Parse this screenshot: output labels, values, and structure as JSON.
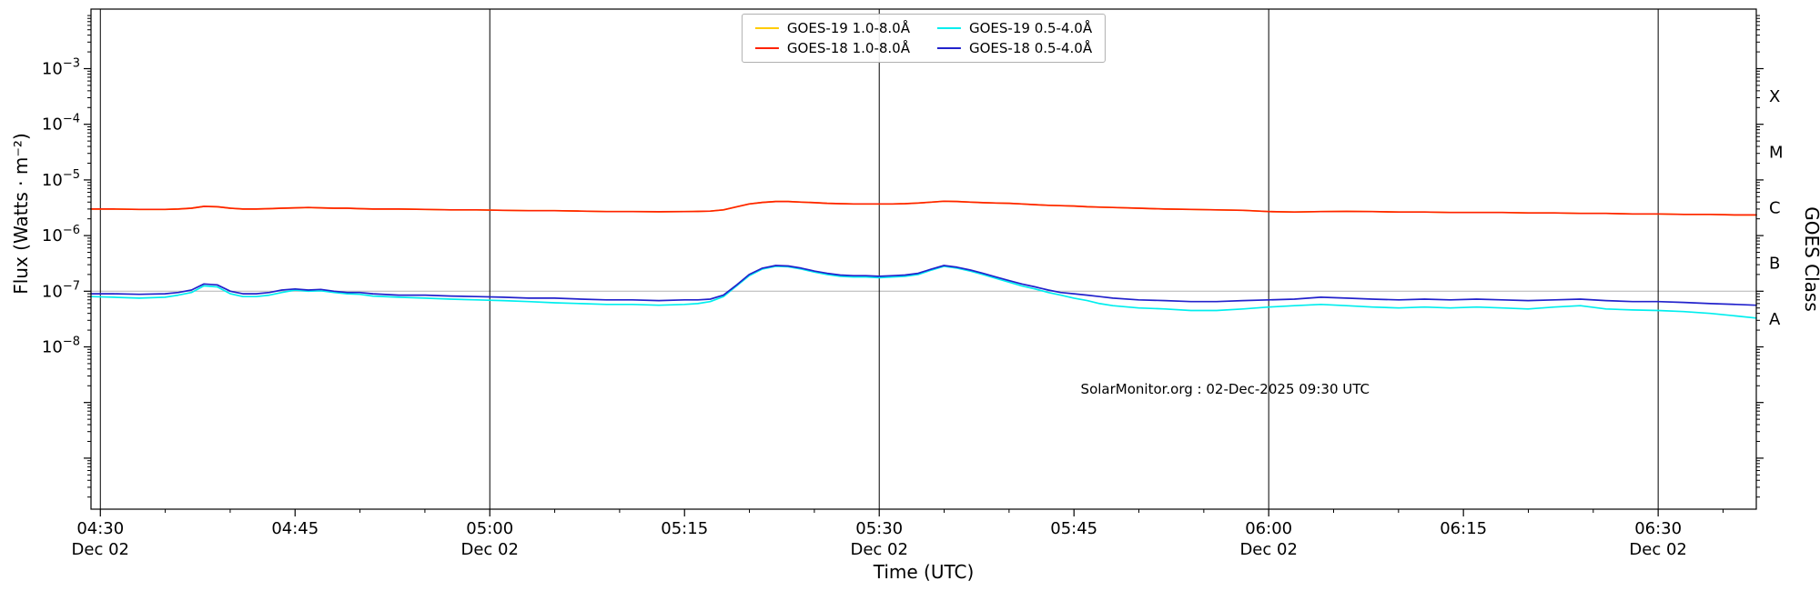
{
  "chart_data": {
    "type": "line",
    "title": "",
    "xlabel": "Time (UTC)",
    "ylabel": "Flux (Watts · m⁻²)",
    "ylabel_right": "GOES Class",
    "watermark": "SolarMonitor.org : 02-Dec-2025 09:30 UTC",
    "y_scale": "log",
    "y_tick_exponents": [
      -3,
      -4,
      -5,
      -6,
      -7,
      -8
    ],
    "reference_line_flux": 1e-07,
    "x_range": [
      4.488,
      6.626
    ],
    "x_major_ticks": [
      {
        "hour": 4.5,
        "label": "04:30",
        "date_label": "Dec 02"
      },
      {
        "hour": 4.75,
        "label": "04:45",
        "date_label": ""
      },
      {
        "hour": 5.0,
        "label": "05:00",
        "date_label": "Dec 02"
      },
      {
        "hour": 5.25,
        "label": "05:15",
        "date_label": ""
      },
      {
        "hour": 5.5,
        "label": "05:30",
        "date_label": "Dec 02"
      },
      {
        "hour": 5.75,
        "label": "05:45",
        "date_label": ""
      },
      {
        "hour": 6.0,
        "label": "06:00",
        "date_label": "Dec 02"
      },
      {
        "hour": 6.25,
        "label": "06:15",
        "date_label": ""
      },
      {
        "hour": 6.5,
        "label": "06:30",
        "date_label": "Dec 02"
      }
    ],
    "goes_class_bands": [
      {
        "letter": "A",
        "center_exponent": -7.5
      },
      {
        "letter": "B",
        "center_exponent": -6.5
      },
      {
        "letter": "C",
        "center_exponent": -5.5
      },
      {
        "letter": "M",
        "center_exponent": -4.5
      },
      {
        "letter": "X",
        "center_exponent": -3.5
      }
    ],
    "x_hours": [
      4.488,
      4.517,
      4.55,
      4.583,
      4.6,
      4.617,
      4.633,
      4.65,
      4.667,
      4.683,
      4.7,
      4.717,
      4.733,
      4.75,
      4.767,
      4.783,
      4.8,
      4.817,
      4.833,
      4.85,
      4.883,
      4.917,
      4.95,
      4.983,
      5.017,
      5.05,
      5.083,
      5.117,
      5.15,
      5.183,
      5.217,
      5.25,
      5.267,
      5.283,
      5.3,
      5.317,
      5.333,
      5.35,
      5.367,
      5.383,
      5.4,
      5.417,
      5.433,
      5.45,
      5.467,
      5.483,
      5.5,
      5.517,
      5.533,
      5.55,
      5.567,
      5.583,
      5.6,
      5.617,
      5.633,
      5.65,
      5.667,
      5.683,
      5.7,
      5.717,
      5.733,
      5.75,
      5.767,
      5.783,
      5.8,
      5.833,
      5.867,
      5.9,
      5.933,
      5.967,
      6.0,
      6.033,
      6.067,
      6.1,
      6.133,
      6.167,
      6.2,
      6.233,
      6.267,
      6.3,
      6.333,
      6.367,
      6.4,
      6.433,
      6.467,
      6.5,
      6.533,
      6.567,
      6.6,
      6.626
    ],
    "series": [
      {
        "name": "GOES-19 1.0-8.0Å",
        "color": "#ffcc00",
        "values": [
          3e-06,
          3e-06,
          2.95e-06,
          2.95e-06,
          3e-06,
          3.1e-06,
          3.35e-06,
          3.3e-06,
          3.1e-06,
          3e-06,
          3e-06,
          3.05e-06,
          3.1e-06,
          3.15e-06,
          3.2e-06,
          3.15e-06,
          3.1e-06,
          3.1e-06,
          3.05e-06,
          3e-06,
          3e-06,
          2.95e-06,
          2.9e-06,
          2.9e-06,
          2.85e-06,
          2.8e-06,
          2.8e-06,
          2.75e-06,
          2.7e-06,
          2.7e-06,
          2.68e-06,
          2.7e-06,
          2.72e-06,
          2.75e-06,
          2.9e-06,
          3.3e-06,
          3.7e-06,
          3.95e-06,
          4.1e-06,
          4.1e-06,
          4e-06,
          3.9e-06,
          3.8e-06,
          3.75e-06,
          3.7e-06,
          3.7e-06,
          3.7e-06,
          3.7e-06,
          3.75e-06,
          3.85e-06,
          4e-06,
          4.15e-06,
          4.1e-06,
          4e-06,
          3.9e-06,
          3.85e-06,
          3.8e-06,
          3.7e-06,
          3.6e-06,
          3.5e-06,
          3.45e-06,
          3.4e-06,
          3.3e-06,
          3.25e-06,
          3.2e-06,
          3.1e-06,
          3e-06,
          2.95e-06,
          2.9e-06,
          2.85e-06,
          2.7e-06,
          2.65e-06,
          2.7e-06,
          2.72e-06,
          2.7e-06,
          2.65e-06,
          2.65e-06,
          2.6e-06,
          2.6e-06,
          2.6e-06,
          2.55e-06,
          2.55e-06,
          2.5e-06,
          2.5e-06,
          2.45e-06,
          2.45e-06,
          2.4e-06,
          2.4e-06,
          2.35e-06,
          2.35e-06
        ]
      },
      {
        "name": "GOES-18 1.0-8.0Å",
        "color": "#ff2200",
        "values": [
          3e-06,
          3e-06,
          2.95e-06,
          2.95e-06,
          3e-06,
          3.1e-06,
          3.35e-06,
          3.3e-06,
          3.1e-06,
          3e-06,
          3e-06,
          3.05e-06,
          3.1e-06,
          3.15e-06,
          3.2e-06,
          3.15e-06,
          3.1e-06,
          3.1e-06,
          3.05e-06,
          3e-06,
          3e-06,
          2.95e-06,
          2.9e-06,
          2.9e-06,
          2.85e-06,
          2.8e-06,
          2.8e-06,
          2.75e-06,
          2.7e-06,
          2.7e-06,
          2.68e-06,
          2.7e-06,
          2.72e-06,
          2.75e-06,
          2.9e-06,
          3.3e-06,
          3.7e-06,
          3.95e-06,
          4.1e-06,
          4.1e-06,
          4e-06,
          3.9e-06,
          3.8e-06,
          3.75e-06,
          3.7e-06,
          3.7e-06,
          3.7e-06,
          3.7e-06,
          3.75e-06,
          3.85e-06,
          4e-06,
          4.15e-06,
          4.1e-06,
          4e-06,
          3.9e-06,
          3.85e-06,
          3.8e-06,
          3.7e-06,
          3.6e-06,
          3.5e-06,
          3.45e-06,
          3.4e-06,
          3.3e-06,
          3.25e-06,
          3.2e-06,
          3.1e-06,
          3e-06,
          2.95e-06,
          2.9e-06,
          2.85e-06,
          2.7e-06,
          2.65e-06,
          2.7e-06,
          2.72e-06,
          2.7e-06,
          2.65e-06,
          2.65e-06,
          2.6e-06,
          2.6e-06,
          2.6e-06,
          2.55e-06,
          2.55e-06,
          2.5e-06,
          2.5e-06,
          2.45e-06,
          2.45e-06,
          2.4e-06,
          2.4e-06,
          2.35e-06,
          2.35e-06
        ]
      },
      {
        "name": "GOES-19 0.5-4.0Å",
        "color": "#00eeee",
        "values": [
          8e-08,
          7.8e-08,
          7.5e-08,
          7.8e-08,
          8.5e-08,
          9.5e-08,
          1.25e-07,
          1.2e-07,
          9e-08,
          8e-08,
          8e-08,
          8.5e-08,
          9.5e-08,
          1.05e-07,
          1e-07,
          1.02e-07,
          9.5e-08,
          9e-08,
          8.8e-08,
          8.2e-08,
          7.8e-08,
          7.5e-08,
          7.2e-08,
          7e-08,
          6.8e-08,
          6.5e-08,
          6.2e-08,
          6e-08,
          5.8e-08,
          5.8e-08,
          5.6e-08,
          5.8e-08,
          6e-08,
          6.5e-08,
          8e-08,
          1.25e-07,
          1.9e-07,
          2.5e-07,
          2.8e-07,
          2.75e-07,
          2.5e-07,
          2.2e-07,
          2e-07,
          1.85e-07,
          1.8e-07,
          1.8e-07,
          1.75e-07,
          1.8e-07,
          1.85e-07,
          2e-07,
          2.4e-07,
          2.8e-07,
          2.6e-07,
          2.3e-07,
          2e-07,
          1.7e-07,
          1.45e-07,
          1.25e-07,
          1.1e-07,
          9.5e-08,
          8.5e-08,
          7.5e-08,
          6.8e-08,
          6e-08,
          5.5e-08,
          5e-08,
          4.8e-08,
          4.5e-08,
          4.5e-08,
          4.8e-08,
          5.2e-08,
          5.5e-08,
          5.8e-08,
          5.5e-08,
          5.2e-08,
          5e-08,
          5.2e-08,
          5e-08,
          5.2e-08,
          5e-08,
          4.8e-08,
          5.2e-08,
          5.5e-08,
          4.8e-08,
          4.6e-08,
          4.5e-08,
          4.3e-08,
          4e-08,
          3.6e-08,
          3.3e-08
        ]
      },
      {
        "name": "GOES-18 0.5-4.0Å",
        "color": "#2222cc",
        "values": [
          9e-08,
          9e-08,
          8.8e-08,
          9e-08,
          9.5e-08,
          1.05e-07,
          1.35e-07,
          1.3e-07,
          1e-07,
          9e-08,
          9e-08,
          9.5e-08,
          1.05e-07,
          1.1e-07,
          1.05e-07,
          1.08e-07,
          1e-07,
          9.5e-08,
          9.5e-08,
          9e-08,
          8.5e-08,
          8.5e-08,
          8.2e-08,
          8e-08,
          7.8e-08,
          7.5e-08,
          7.5e-08,
          7.2e-08,
          7e-08,
          7e-08,
          6.8e-08,
          7e-08,
          7e-08,
          7.2e-08,
          8.5e-08,
          1.3e-07,
          2e-07,
          2.6e-07,
          2.9e-07,
          2.85e-07,
          2.6e-07,
          2.3e-07,
          2.1e-07,
          1.95e-07,
          1.9e-07,
          1.9e-07,
          1.85e-07,
          1.9e-07,
          1.95e-07,
          2.1e-07,
          2.5e-07,
          2.9e-07,
          2.7e-07,
          2.4e-07,
          2.1e-07,
          1.8e-07,
          1.55e-07,
          1.35e-07,
          1.2e-07,
          1.05e-07,
          9.5e-08,
          9e-08,
          8.5e-08,
          8e-08,
          7.5e-08,
          7e-08,
          6.8e-08,
          6.5e-08,
          6.5e-08,
          6.8e-08,
          7e-08,
          7.2e-08,
          7.8e-08,
          7.5e-08,
          7.2e-08,
          7e-08,
          7.2e-08,
          7e-08,
          7.2e-08,
          7e-08,
          6.8e-08,
          7e-08,
          7.2e-08,
          6.8e-08,
          6.5e-08,
          6.5e-08,
          6.3e-08,
          6e-08,
          5.8e-08,
          5.6e-08
        ]
      }
    ]
  }
}
